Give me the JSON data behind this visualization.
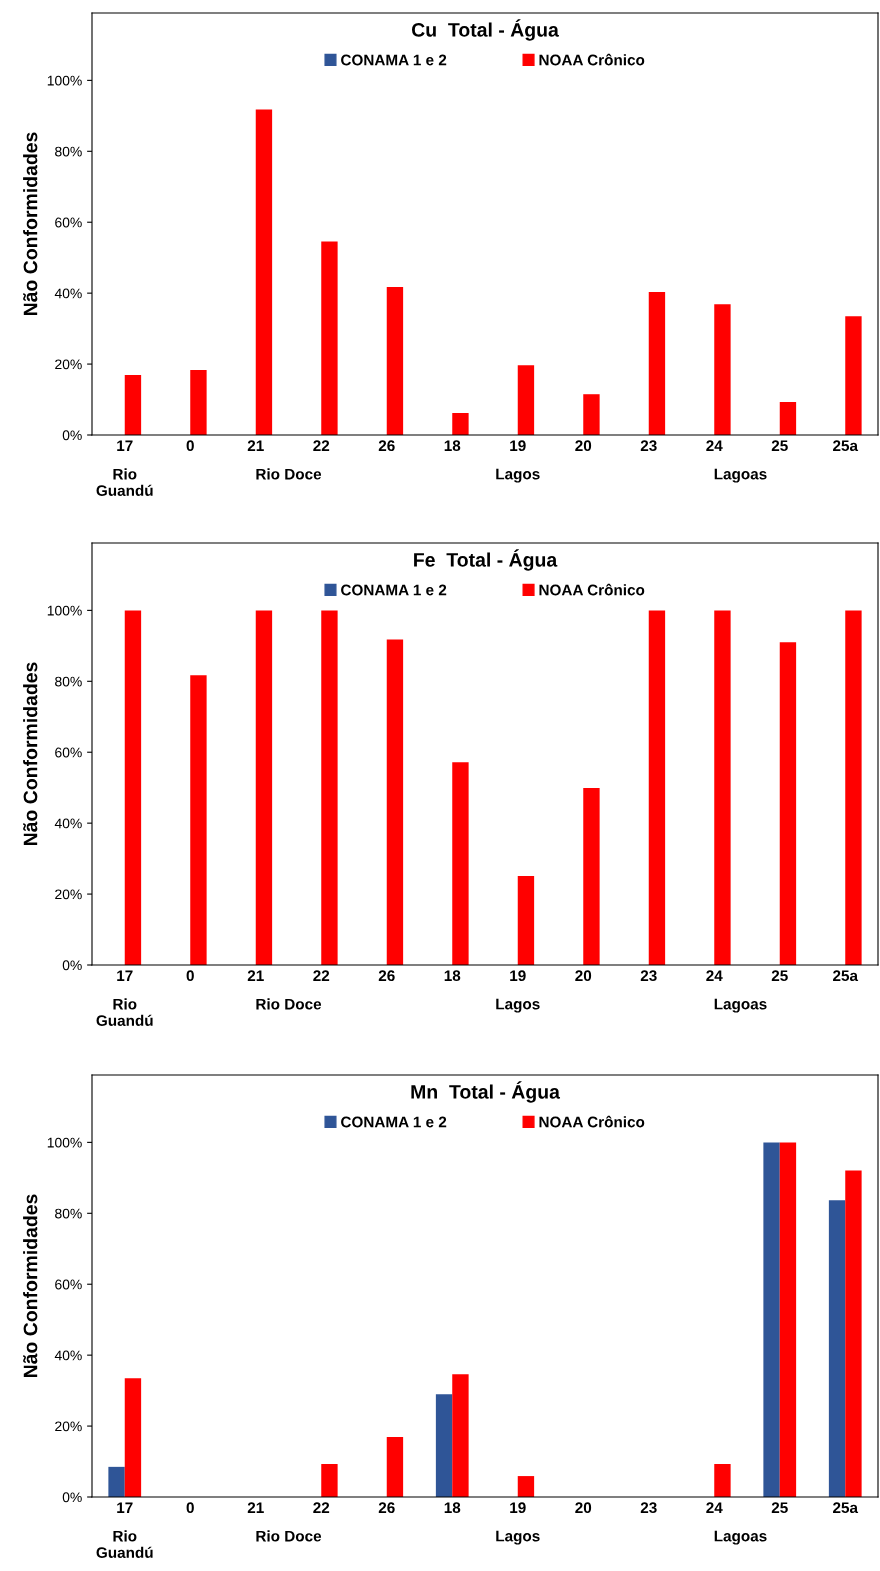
{
  "chart_data": [
    {
      "type": "bar",
      "title": "Cu  Total - Água",
      "ylabel": "Não Conformidades",
      "categories": [
        "17",
        "0",
        "21",
        "22",
        "26",
        "18",
        "19",
        "20",
        "23",
        "24",
        "25",
        "25a"
      ],
      "series": [
        {
          "name": "CONAMA 1 e 2",
          "color": "#2f5597",
          "values": [
            0,
            0,
            0,
            0,
            0,
            0,
            0,
            0,
            0,
            0,
            0,
            0
          ]
        },
        {
          "name": "NOAA Crônico",
          "color": "#ff0000",
          "values": [
            16.9,
            18.3,
            91.8,
            54.6,
            41.7,
            6.2,
            19.7,
            11.5,
            40.3,
            36.9,
            9.3,
            33.5
          ]
        }
      ],
      "ylim": [
        0,
        119
      ],
      "yticks": [
        {
          "value": 0,
          "label": "0%"
        },
        {
          "value": 20,
          "label": "20%"
        },
        {
          "value": 40,
          "label": "40%"
        },
        {
          "value": 60,
          "label": "60%"
        },
        {
          "value": 80,
          "label": "80%"
        },
        {
          "value": 100,
          "label": "100%"
        }
      ],
      "annotations": [
        "Rio\nGuandú",
        "Rio Doce",
        "Lagos",
        "Lagoas"
      ],
      "legend": "top",
      "grid": false
    },
    {
      "type": "bar",
      "title": "Fe  Total - Água",
      "ylabel": "Não Conformidades",
      "categories": [
        "17",
        "0",
        "21",
        "22",
        "26",
        "18",
        "19",
        "20",
        "23",
        "24",
        "25",
        "25a"
      ],
      "series": [
        {
          "name": "CONAMA 1 e 2",
          "color": "#2f5597",
          "values": [
            0,
            0,
            0,
            0,
            0,
            0,
            0,
            0,
            0,
            0,
            0,
            0
          ]
        },
        {
          "name": "NOAA Crônico",
          "color": "#ff0000",
          "values": [
            100,
            81.7,
            100,
            100,
            91.8,
            57.2,
            25.1,
            49.9,
            100,
            100,
            91,
            100
          ]
        }
      ],
      "ylim": [
        0,
        119
      ],
      "yticks": [
        {
          "value": 0,
          "label": "0%"
        },
        {
          "value": 20,
          "label": "20%"
        },
        {
          "value": 40,
          "label": "40%"
        },
        {
          "value": 60,
          "label": "60%"
        },
        {
          "value": 80,
          "label": "80%"
        },
        {
          "value": 100,
          "label": "100%"
        }
      ],
      "annotations": [
        "Rio\nGuandú",
        "Rio Doce",
        "Lagos",
        "Lagoas"
      ],
      "legend": "top",
      "grid": false
    },
    {
      "type": "bar",
      "title": "Mn  Total - Água",
      "ylabel": "Não Conformidades",
      "categories": [
        "17",
        "0",
        "21",
        "22",
        "26",
        "18",
        "19",
        "20",
        "23",
        "24",
        "25",
        "25a"
      ],
      "series": [
        {
          "name": "CONAMA 1 e 2",
          "color": "#2f5597",
          "values": [
            8.5,
            0,
            0,
            0,
            0,
            29,
            0,
            0,
            0,
            0,
            100,
            83.7
          ]
        },
        {
          "name": "NOAA Crônico",
          "color": "#ff0000",
          "values": [
            33.5,
            0,
            0,
            9.3,
            16.9,
            34.6,
            5.9,
            0,
            0,
            9.3,
            100,
            92.1
          ]
        }
      ],
      "ylim": [
        0,
        119
      ],
      "yticks": [
        {
          "value": 0,
          "label": "0%"
        },
        {
          "value": 20,
          "label": "20%"
        },
        {
          "value": 40,
          "label": "40%"
        },
        {
          "value": 60,
          "label": "60%"
        },
        {
          "value": 80,
          "label": "80%"
        },
        {
          "value": 100,
          "label": "100%"
        }
      ],
      "annotations": [
        "Rio\nGuandú",
        "Rio Doce",
        "Lagos",
        "Lagoas"
      ],
      "legend": "top",
      "grid": false
    }
  ]
}
